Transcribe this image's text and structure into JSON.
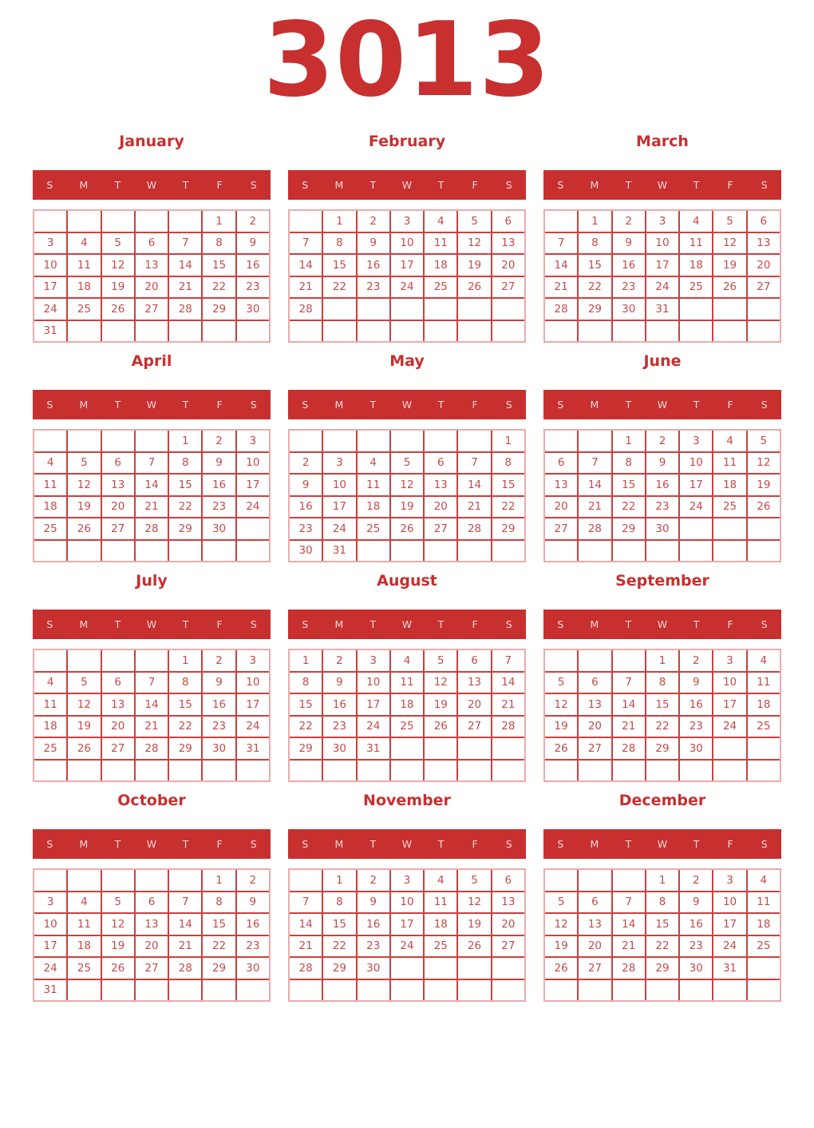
{
  "year_title": "3013",
  "weekdays": [
    "S",
    "M",
    "T",
    "W",
    "T",
    "F",
    "S"
  ],
  "colors": {
    "accent_red": "#c82f2f",
    "grid_line_red": "#cb4040",
    "grid_outer_pink": "#e8acac",
    "day_number_red": "#c64a4a",
    "weekday_text": "#f2d8d8",
    "background": "#ffffff"
  },
  "months": [
    {
      "name": "January",
      "weeks": [
        [
          "",
          "",
          "",
          "",
          "",
          "1",
          "2"
        ],
        [
          "3",
          "4",
          "5",
          "6",
          "7",
          "8",
          "9"
        ],
        [
          "10",
          "11",
          "12",
          "13",
          "14",
          "15",
          "16"
        ],
        [
          "17",
          "18",
          "19",
          "20",
          "21",
          "22",
          "23"
        ],
        [
          "24",
          "25",
          "26",
          "27",
          "28",
          "29",
          "30"
        ],
        [
          "31",
          "",
          "",
          "",
          "",
          "",
          ""
        ]
      ]
    },
    {
      "name": "February",
      "weeks": [
        [
          "",
          "1",
          "2",
          "3",
          "4",
          "5",
          "6"
        ],
        [
          "7",
          "8",
          "9",
          "10",
          "11",
          "12",
          "13"
        ],
        [
          "14",
          "15",
          "16",
          "17",
          "18",
          "19",
          "20"
        ],
        [
          "21",
          "22",
          "23",
          "24",
          "25",
          "26",
          "27"
        ],
        [
          "28",
          "",
          "",
          "",
          "",
          "",
          ""
        ],
        [
          "",
          "",
          "",
          "",
          "",
          "",
          ""
        ]
      ]
    },
    {
      "name": "March",
      "weeks": [
        [
          "",
          "1",
          "2",
          "3",
          "4",
          "5",
          "6"
        ],
        [
          "7",
          "8",
          "9",
          "10",
          "11",
          "12",
          "13"
        ],
        [
          "14",
          "15",
          "16",
          "17",
          "18",
          "19",
          "20"
        ],
        [
          "21",
          "22",
          "23",
          "24",
          "25",
          "26",
          "27"
        ],
        [
          "28",
          "29",
          "30",
          "31",
          "",
          "",
          ""
        ],
        [
          "",
          "",
          "",
          "",
          "",
          "",
          ""
        ]
      ]
    },
    {
      "name": "April",
      "weeks": [
        [
          "",
          "",
          "",
          "",
          "1",
          "2",
          "3"
        ],
        [
          "4",
          "5",
          "6",
          "7",
          "8",
          "9",
          "10"
        ],
        [
          "11",
          "12",
          "13",
          "14",
          "15",
          "16",
          "17"
        ],
        [
          "18",
          "19",
          "20",
          "21",
          "22",
          "23",
          "24"
        ],
        [
          "25",
          "26",
          "27",
          "28",
          "29",
          "30",
          ""
        ],
        [
          "",
          "",
          "",
          "",
          "",
          "",
          ""
        ]
      ]
    },
    {
      "name": "May",
      "weeks": [
        [
          "",
          "",
          "",
          "",
          "",
          "",
          "1"
        ],
        [
          "2",
          "3",
          "4",
          "5",
          "6",
          "7",
          "8"
        ],
        [
          "9",
          "10",
          "11",
          "12",
          "13",
          "14",
          "15"
        ],
        [
          "16",
          "17",
          "18",
          "19",
          "20",
          "21",
          "22"
        ],
        [
          "23",
          "24",
          "25",
          "26",
          "27",
          "28",
          "29"
        ],
        [
          "30",
          "31",
          "",
          "",
          "",
          "",
          ""
        ]
      ]
    },
    {
      "name": "June",
      "weeks": [
        [
          "",
          "",
          "1",
          "2",
          "3",
          "4",
          "5"
        ],
        [
          "6",
          "7",
          "8",
          "9",
          "10",
          "11",
          "12"
        ],
        [
          "13",
          "14",
          "15",
          "16",
          "17",
          "18",
          "19"
        ],
        [
          "20",
          "21",
          "22",
          "23",
          "24",
          "25",
          "26"
        ],
        [
          "27",
          "28",
          "29",
          "30",
          "",
          "",
          ""
        ],
        [
          "",
          "",
          "",
          "",
          "",
          "",
          ""
        ]
      ]
    },
    {
      "name": "July",
      "weeks": [
        [
          "",
          "",
          "",
          "",
          "1",
          "2",
          "3"
        ],
        [
          "4",
          "5",
          "6",
          "7",
          "8",
          "9",
          "10"
        ],
        [
          "11",
          "12",
          "13",
          "14",
          "15",
          "16",
          "17"
        ],
        [
          "18",
          "19",
          "20",
          "21",
          "22",
          "23",
          "24"
        ],
        [
          "25",
          "26",
          "27",
          "28",
          "29",
          "30",
          "31"
        ],
        [
          "",
          "",
          "",
          "",
          "",
          "",
          ""
        ]
      ]
    },
    {
      "name": "August",
      "weeks": [
        [
          "1",
          "2",
          "3",
          "4",
          "5",
          "6",
          "7"
        ],
        [
          "8",
          "9",
          "10",
          "11",
          "12",
          "13",
          "14"
        ],
        [
          "15",
          "16",
          "17",
          "18",
          "19",
          "20",
          "21"
        ],
        [
          "22",
          "23",
          "24",
          "25",
          "26",
          "27",
          "28"
        ],
        [
          "29",
          "30",
          "31",
          "",
          "",
          "",
          ""
        ],
        [
          "",
          "",
          "",
          "",
          "",
          "",
          ""
        ]
      ]
    },
    {
      "name": "September",
      "weeks": [
        [
          "",
          "",
          "",
          "1",
          "2",
          "3",
          "4"
        ],
        [
          "5",
          "6",
          "7",
          "8",
          "9",
          "10",
          "11"
        ],
        [
          "12",
          "13",
          "14",
          "15",
          "16",
          "17",
          "18"
        ],
        [
          "19",
          "20",
          "21",
          "22",
          "23",
          "24",
          "25"
        ],
        [
          "26",
          "27",
          "28",
          "29",
          "30",
          "",
          ""
        ],
        [
          "",
          "",
          "",
          "",
          "",
          "",
          ""
        ]
      ]
    },
    {
      "name": "October",
      "weeks": [
        [
          "",
          "",
          "",
          "",
          "",
          "1",
          "2"
        ],
        [
          "3",
          "4",
          "5",
          "6",
          "7",
          "8",
          "9"
        ],
        [
          "10",
          "11",
          "12",
          "13",
          "14",
          "15",
          "16"
        ],
        [
          "17",
          "18",
          "19",
          "20",
          "21",
          "22",
          "23"
        ],
        [
          "24",
          "25",
          "26",
          "27",
          "28",
          "29",
          "30"
        ],
        [
          "31",
          "",
          "",
          "",
          "",
          "",
          ""
        ]
      ]
    },
    {
      "name": "November",
      "weeks": [
        [
          "",
          "1",
          "2",
          "3",
          "4",
          "5",
          "6"
        ],
        [
          "7",
          "8",
          "9",
          "10",
          "11",
          "12",
          "13"
        ],
        [
          "14",
          "15",
          "16",
          "17",
          "18",
          "19",
          "20"
        ],
        [
          "21",
          "22",
          "23",
          "24",
          "25",
          "26",
          "27"
        ],
        [
          "28",
          "29",
          "30",
          "",
          "",
          "",
          ""
        ],
        [
          "",
          "",
          "",
          "",
          "",
          "",
          ""
        ]
      ]
    },
    {
      "name": "December",
      "weeks": [
        [
          "",
          "",
          "",
          "1",
          "2",
          "3",
          "4"
        ],
        [
          "5",
          "6",
          "7",
          "8",
          "9",
          "10",
          "11"
        ],
        [
          "12",
          "13",
          "14",
          "15",
          "16",
          "17",
          "18"
        ],
        [
          "19",
          "20",
          "21",
          "22",
          "23",
          "24",
          "25"
        ],
        [
          "26",
          "27",
          "28",
          "29",
          "30",
          "31",
          ""
        ],
        [
          "",
          "",
          "",
          "",
          "",
          "",
          ""
        ]
      ]
    }
  ]
}
